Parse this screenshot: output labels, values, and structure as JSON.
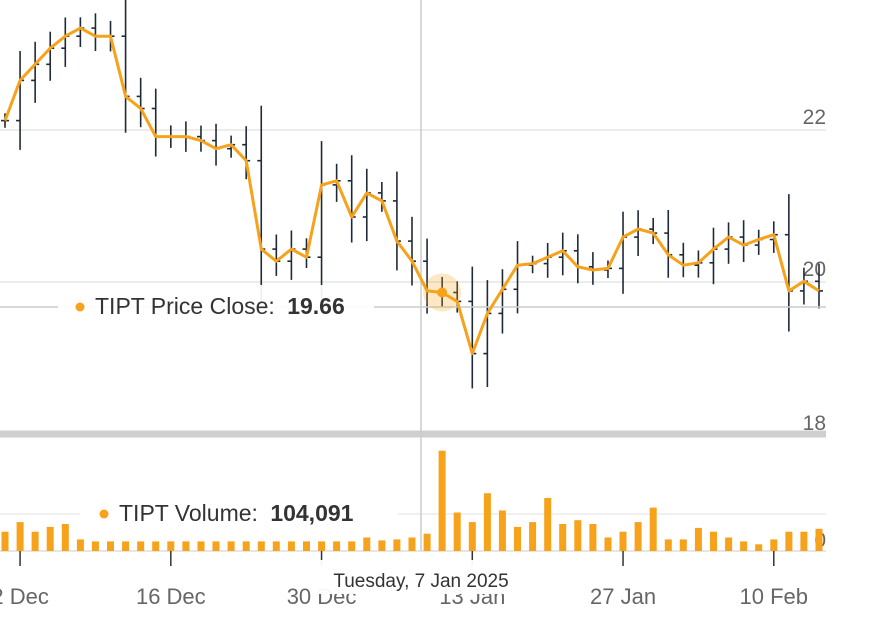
{
  "chart_data": [
    {
      "type": "line",
      "title": "",
      "series": [
        {
          "name": "TIPT Price Close",
          "values": [
            21.8,
            22.3,
            22.5,
            22.7,
            22.85,
            22.95,
            22.85,
            22.85,
            22.1,
            21.95,
            21.6,
            21.6,
            21.6,
            21.55,
            21.45,
            21.5,
            21.3,
            20.2,
            20.05,
            20.2,
            20.1,
            21.0,
            21.05,
            20.6,
            20.9,
            20.8,
            20.3,
            20.05,
            19.68,
            19.66,
            19.55,
            18.9,
            19.4,
            19.7,
            20.0,
            20.02,
            20.1,
            20.18,
            19.98,
            19.94,
            19.96,
            20.35,
            20.45,
            20.4,
            20.13,
            20.0,
            20.03,
            20.2,
            20.35,
            20.25,
            20.32,
            20.38,
            19.68,
            19.8,
            19.68
          ]
        }
      ],
      "y_ticks": [
        "22",
        "20",
        "18"
      ],
      "ylim": [
        17.9,
        23.3
      ],
      "tooltip": {
        "label": "TIPT Price Close:",
        "value": "19.66"
      },
      "colors": {
        "line": "#f7a21b",
        "ohlc": "#1f2a38",
        "crosshair": "#c8c8c8"
      }
    },
    {
      "type": "bar",
      "series": [
        {
          "name": "TIPT Volume",
          "values": [
            20000,
            30000,
            20000,
            25000,
            28000,
            12000,
            10000,
            10000,
            10000,
            10000,
            10000,
            10000,
            10000,
            10000,
            10000,
            10000,
            10000,
            10000,
            10000,
            10000,
            10000,
            10000,
            10000,
            10000,
            14000,
            11000,
            12000,
            14000,
            18000,
            104091,
            40000,
            30000,
            60000,
            42000,
            25000,
            30000,
            55000,
            28000,
            32000,
            28000,
            14000,
            20000,
            30000,
            45000,
            12000,
            12000,
            24000,
            20000,
            14000,
            10000,
            7000,
            12000,
            20000,
            20000,
            23000
          ]
        }
      ],
      "y_ticks": [
        "0"
      ],
      "ylim": [
        0,
        110000
      ],
      "tooltip": {
        "label": "TIPT Volume:",
        "value": "104,091"
      }
    }
  ],
  "x_axis": {
    "ticks": [
      "2 Dec",
      "16 Dec",
      "30 Dec",
      "13 Jan",
      "27 Jan",
      "10 Feb"
    ],
    "hover_label": "Tuesday, 7 Jan 2025"
  }
}
